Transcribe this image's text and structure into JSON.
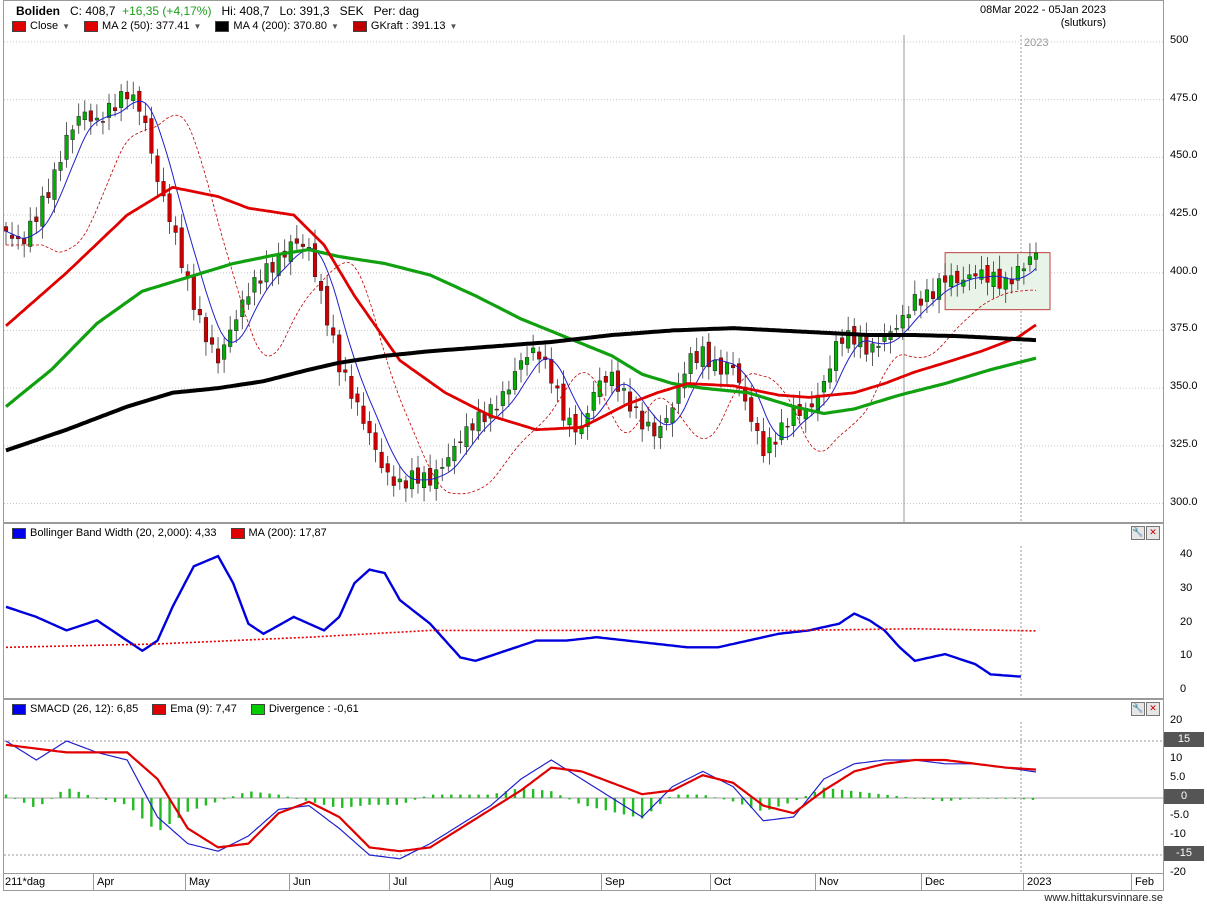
{
  "header": {
    "symbol": "Boliden",
    "close_label": "C: 408,7",
    "change": "+16,35 (+4,17%)",
    "high": "Hi: 408,7",
    "low": "Lo: 391,3",
    "currency": "SEK",
    "period": "Per: dag",
    "date_range": "08Mar 2022 - 05Jan 2023",
    "price_type": "(slutkurs)"
  },
  "main_legend": [
    {
      "label": "Close",
      "color": "#e00000",
      "caret": true
    },
    {
      "label": "MA 2 (50): 377.41",
      "color": "#e00000",
      "caret": true
    },
    {
      "label": "MA 4 (200): 370.80",
      "color": "#000000",
      "caret": true
    },
    {
      "label": "GKraft : 391.13",
      "color": "#c00000",
      "caret": true
    }
  ],
  "bb_legend": [
    {
      "label": "Bollinger Band Width (20, 2,000): 4,33",
      "color": "#0000ee"
    },
    {
      "label": "MA (200): 17,87",
      "color": "#e00000"
    }
  ],
  "macd_legend": [
    {
      "label": "SMACD (26, 12): 6,85",
      "color": "#0000ee"
    },
    {
      "label": "Ema (9): 7,47",
      "color": "#e00000"
    },
    {
      "label": "Divergence : -0,61",
      "color": "#00cc00"
    }
  ],
  "x_axis": {
    "first_label": "211*dag",
    "months": [
      "Apr",
      "May",
      "Jun",
      "Jul",
      "Aug",
      "Sep",
      "Oct",
      "Nov",
      "Dec",
      "2023",
      "Feb"
    ],
    "year_marker": "2023"
  },
  "footer": "www.hittakursvinnare.se",
  "colors": {
    "candle_up": "#00b000",
    "candle_down": "#cc0000",
    "ma50": "#e00000",
    "ma200": "#000000",
    "green_ma": "#10a010",
    "blue_line": "#2020cc",
    "bbw_line": "#0000dd",
    "bbw_ma": "#e00000",
    "box_fill": "#e8f4e8",
    "box_border": "#c04040"
  },
  "chart_data": [
    {
      "type": "candlestick",
      "title": "Boliden",
      "y_ticks": [
        "500",
        "475.0",
        "450.0",
        "425.0",
        "400.0",
        "375.0",
        "350.0",
        "325.0",
        "300.0"
      ],
      "ylim": [
        292,
        503
      ],
      "n_days": 211,
      "closes_keypoints": [
        [
          0,
          418
        ],
        [
          5,
          412
        ],
        [
          10,
          425
        ],
        [
          15,
          438
        ],
        [
          20,
          458
        ],
        [
          25,
          470
        ],
        [
          30,
          465
        ],
        [
          35,
          472
        ],
        [
          40,
          478
        ],
        [
          45,
          470
        ],
        [
          50,
          440
        ],
        [
          55,
          420
        ],
        [
          60,
          395
        ],
        [
          65,
          375
        ],
        [
          70,
          362
        ],
        [
          75,
          378
        ],
        [
          80,
          392
        ],
        [
          85,
          400
        ],
        [
          90,
          405
        ],
        [
          95,
          414
        ],
        [
          100,
          410
        ],
        [
          105,
          385
        ],
        [
          110,
          360
        ],
        [
          115,
          345
        ],
        [
          120,
          330
        ],
        [
          125,
          313
        ],
        [
          130,
          308
        ],
        [
          135,
          312
        ],
        [
          140,
          310
        ],
        [
          145,
          318
        ],
        [
          150,
          328
        ],
        [
          155,
          336
        ],
        [
          160,
          340
        ],
        [
          165,
          348
        ],
        [
          170,
          362
        ],
        [
          175,
          367
        ],
        [
          180,
          355
        ],
        [
          185,
          335
        ],
        [
          190,
          332
        ],
        [
          195,
          352
        ],
        [
          200,
          355
        ],
        [
          205,
          345
        ],
        [
          210,
          335
        ],
        [
          215,
          330
        ],
        [
          220,
          342
        ],
        [
          225,
          362
        ],
        [
          230,
          365
        ],
        [
          235,
          358
        ],
        [
          240,
          360
        ],
        [
          245,
          340
        ],
        [
          250,
          323
        ],
        [
          255,
          330
        ],
        [
          260,
          340
        ],
        [
          265,
          340
        ],
        [
          270,
          352
        ],
        [
          275,
          372
        ],
        [
          280,
          372
        ],
        [
          285,
          366
        ],
        [
          290,
          372
        ],
        [
          295,
          378
        ],
        [
          300,
          388
        ],
        [
          305,
          390
        ],
        [
          310,
          398
        ],
        [
          315,
          396
        ],
        [
          320,
          400
        ],
        [
          325,
          398
        ],
        [
          330,
          395
        ],
        [
          335,
          402
        ],
        [
          340,
          408.7
        ]
      ],
      "ma50_keypoints": [
        [
          0,
          377
        ],
        [
          20,
          400
        ],
        [
          40,
          425
        ],
        [
          55,
          437
        ],
        [
          70,
          433
        ],
        [
          80,
          428
        ],
        [
          95,
          425
        ],
        [
          105,
          412
        ],
        [
          115,
          390
        ],
        [
          130,
          362
        ],
        [
          145,
          348
        ],
        [
          160,
          338
        ],
        [
          175,
          332
        ],
        [
          190,
          333
        ],
        [
          205,
          343
        ],
        [
          215,
          348
        ],
        [
          225,
          352
        ],
        [
          240,
          351
        ],
        [
          255,
          347
        ],
        [
          265,
          346
        ],
        [
          280,
          348
        ],
        [
          290,
          352
        ],
        [
          300,
          357
        ],
        [
          310,
          361
        ],
        [
          322,
          366
        ],
        [
          334,
          372
        ],
        [
          340,
          377.41
        ]
      ],
      "ma200_keypoints": [
        [
          0,
          323
        ],
        [
          20,
          332
        ],
        [
          40,
          342
        ],
        [
          55,
          348
        ],
        [
          70,
          350
        ],
        [
          85,
          353
        ],
        [
          100,
          358
        ],
        [
          110,
          361
        ],
        [
          125,
          364
        ],
        [
          140,
          366
        ],
        [
          160,
          368
        ],
        [
          180,
          370
        ],
        [
          200,
          373
        ],
        [
          220,
          375
        ],
        [
          240,
          376
        ],
        [
          255,
          375
        ],
        [
          270,
          374
        ],
        [
          285,
          373
        ],
        [
          300,
          373
        ],
        [
          315,
          372.5
        ],
        [
          330,
          371.5
        ],
        [
          340,
          370.8
        ]
      ],
      "green_ma_keypoints": [
        [
          0,
          342
        ],
        [
          15,
          358
        ],
        [
          30,
          378
        ],
        [
          45,
          392
        ],
        [
          60,
          398
        ],
        [
          75,
          404
        ],
        [
          90,
          408
        ],
        [
          100,
          410
        ],
        [
          110,
          407
        ],
        [
          125,
          404
        ],
        [
          140,
          399
        ],
        [
          155,
          390
        ],
        [
          170,
          380
        ],
        [
          185,
          372
        ],
        [
          200,
          364
        ],
        [
          210,
          356
        ],
        [
          220,
          352
        ],
        [
          230,
          350
        ],
        [
          245,
          348
        ],
        [
          260,
          342
        ],
        [
          270,
          339
        ],
        [
          280,
          341
        ],
        [
          295,
          347
        ],
        [
          310,
          352
        ],
        [
          325,
          358
        ],
        [
          340,
          363
        ]
      ]
    },
    {
      "type": "line",
      "title": "Bollinger Band Width (20, 2,000): 4,33",
      "y_ticks": [
        "40",
        "30",
        "20",
        "10",
        "0"
      ],
      "ylim": [
        -2,
        43
      ],
      "series": [
        {
          "name": "Bollinger Band Width (20, 2,000): 4,33",
          "keypoints": [
            [
              0,
              25
            ],
            [
              10,
              22
            ],
            [
              20,
              18
            ],
            [
              30,
              21
            ],
            [
              40,
              15
            ],
            [
              45,
              12
            ],
            [
              50,
              15
            ],
            [
              55,
              25
            ],
            [
              62,
              37
            ],
            [
              70,
              40
            ],
            [
              75,
              32
            ],
            [
              80,
              20
            ],
            [
              85,
              17
            ],
            [
              95,
              22
            ],
            [
              105,
              18
            ],
            [
              110,
              22
            ],
            [
              115,
              32
            ],
            [
              120,
              36
            ],
            [
              125,
              35
            ],
            [
              130,
              27
            ],
            [
              140,
              20
            ],
            [
              145,
              15
            ],
            [
              150,
              10
            ],
            [
              155,
              9
            ],
            [
              165,
              12
            ],
            [
              175,
              15
            ],
            [
              185,
              15
            ],
            [
              195,
              16
            ],
            [
              205,
              15
            ],
            [
              215,
              14
            ],
            [
              225,
              13
            ],
            [
              235,
              13
            ],
            [
              245,
              15
            ],
            [
              255,
              17
            ],
            [
              265,
              18
            ],
            [
              275,
              20
            ],
            [
              280,
              23
            ],
            [
              285,
              21
            ],
            [
              290,
              18
            ],
            [
              295,
              13
            ],
            [
              300,
              9
            ],
            [
              310,
              11
            ],
            [
              320,
              8
            ],
            [
              325,
              5
            ],
            [
              335,
              4.33
            ]
          ]
        },
        {
          "name": "MA (200): 17,87",
          "keypoints": [
            [
              0,
              13
            ],
            [
              50,
              14
            ],
            [
              100,
              16
            ],
            [
              140,
              18
            ],
            [
              200,
              18
            ],
            [
              260,
              18
            ],
            [
              300,
              18.5
            ],
            [
              340,
              17.87
            ]
          ]
        }
      ]
    },
    {
      "type": "line",
      "title": "SMACD (26, 12): 6,85",
      "y_ticks": [
        "20",
        "10",
        "5.0",
        "0",
        "-5.0",
        "-10",
        "-20"
      ],
      "value_boxes": [
        "15",
        "0",
        "-15"
      ],
      "ylim": [
        -20,
        20
      ],
      "series": [
        {
          "name": "SMACD (26, 12): 6,85",
          "keypoints": [
            [
              0,
              15
            ],
            [
              10,
              10
            ],
            [
              20,
              15
            ],
            [
              30,
              12
            ],
            [
              40,
              10
            ],
            [
              50,
              -5
            ],
            [
              60,
              -12
            ],
            [
              70,
              -14
            ],
            [
              80,
              -10
            ],
            [
              90,
              -3
            ],
            [
              100,
              -2
            ],
            [
              110,
              -8
            ],
            [
              120,
              -15
            ],
            [
              130,
              -16
            ],
            [
              140,
              -12
            ],
            [
              150,
              -7
            ],
            [
              160,
              -2
            ],
            [
              170,
              5
            ],
            [
              180,
              10
            ],
            [
              190,
              5
            ],
            [
              200,
              0
            ],
            [
              210,
              -5
            ],
            [
              220,
              3
            ],
            [
              230,
              7
            ],
            [
              240,
              3
            ],
            [
              250,
              -6
            ],
            [
              260,
              -5
            ],
            [
              270,
              5
            ],
            [
              280,
              9
            ],
            [
              290,
              10
            ],
            [
              300,
              10
            ],
            [
              310,
              9
            ],
            [
              320,
              9
            ],
            [
              330,
              8
            ],
            [
              340,
              6.85
            ]
          ]
        },
        {
          "name": "Ema (9): 7,47",
          "keypoints": [
            [
              0,
              14
            ],
            [
              20,
              12
            ],
            [
              40,
              12
            ],
            [
              50,
              5
            ],
            [
              60,
              -8
            ],
            [
              70,
              -13
            ],
            [
              80,
              -12
            ],
            [
              90,
              -4
            ],
            [
              100,
              -1
            ],
            [
              110,
              -5
            ],
            [
              120,
              -13
            ],
            [
              130,
              -14
            ],
            [
              140,
              -13
            ],
            [
              150,
              -8
            ],
            [
              160,
              -3
            ],
            [
              170,
              2
            ],
            [
              180,
              8
            ],
            [
              190,
              7
            ],
            [
              200,
              4
            ],
            [
              210,
              1
            ],
            [
              220,
              2
            ],
            [
              230,
              6
            ],
            [
              240,
              4
            ],
            [
              250,
              -2
            ],
            [
              260,
              -4
            ],
            [
              270,
              2
            ],
            [
              280,
              7
            ],
            [
              290,
              9
            ],
            [
              300,
              10
            ],
            [
              310,
              10
            ],
            [
              320,
              9
            ],
            [
              330,
              8
            ],
            [
              340,
              7.47
            ]
          ]
        }
      ]
    }
  ]
}
